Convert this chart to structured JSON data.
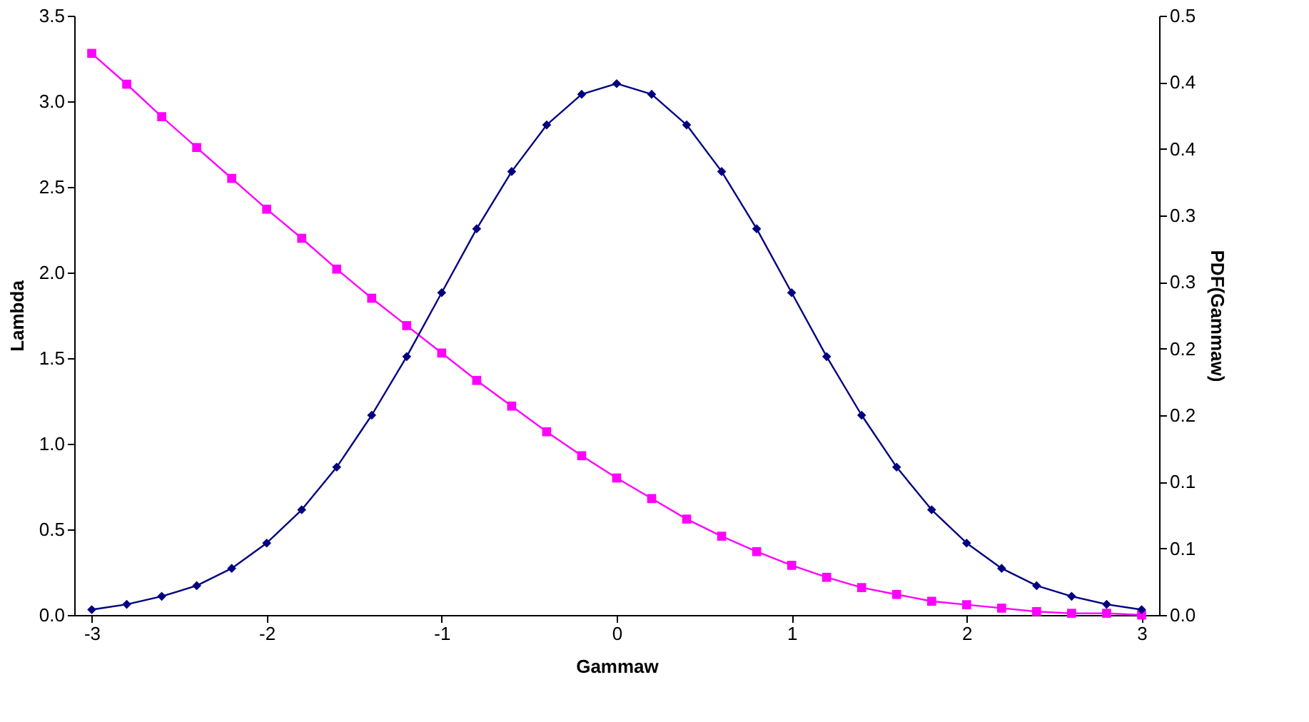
{
  "chart_data": {
    "type": "line",
    "xlabel": "Gammaw",
    "ylabel": "Lambda",
    "y2label": "PDF(Gammaw)",
    "x": [
      -3,
      -2.8,
      -2.6,
      -2.4,
      -2.2,
      -2,
      -1.8,
      -1.6,
      -1.4,
      -1.2,
      -1,
      -0.8,
      -0.6,
      -0.4,
      -0.2,
      0,
      0.2,
      0.4,
      0.6,
      0.8,
      1,
      1.2,
      1.4,
      1.6,
      1.8,
      2,
      2.2,
      2.4,
      2.6,
      2.8,
      3
    ],
    "series": [
      {
        "color": "#ff00ff",
        "marker": "square",
        "values": [
          3.28,
          3.1,
          2.91,
          2.73,
          2.55,
          2.37,
          2.2,
          2.02,
          1.85,
          1.69,
          1.53,
          1.37,
          1.22,
          1.07,
          0.93,
          0.8,
          0.68,
          0.56,
          0.46,
          0.37,
          0.29,
          0.22,
          0.16,
          0.12,
          0.08,
          0.06,
          0.04,
          0.02,
          0.01,
          0.01,
          0
        ]
      },
      {
        "color": "#000080",
        "marker": "diamond",
        "axis": "y2",
        "values": [
          0.004,
          0.008,
          0.014,
          0.022,
          0.035,
          0.054,
          0.079,
          0.111,
          0.15,
          0.194,
          0.242,
          0.29,
          0.333,
          0.368,
          0.391,
          0.399,
          0.391,
          0.368,
          0.333,
          0.29,
          0.242,
          0.194,
          0.15,
          0.111,
          0.079,
          0.054,
          0.035,
          0.022,
          0.014,
          0.008,
          0.004
        ]
      }
    ],
    "xlim": [
      -3.1,
      3.1
    ],
    "xticks": [
      -3,
      -2,
      -1,
      0,
      1,
      2,
      3
    ],
    "ylim": [
      0,
      3.5
    ],
    "yticks": [
      {
        "value": 0,
        "label": "0.0"
      },
      0.5,
      {
        "value": 1,
        "label": "1.0"
      },
      1.5,
      {
        "value": 2,
        "label": "2.0"
      },
      2.5,
      {
        "value": 3,
        "label": "3.0"
      },
      3.5
    ],
    "y2lim": [
      0,
      0.45
    ],
    "y2ticks": [
      {
        "value": 0,
        "label": "0.0"
      },
      {
        "value": 0.05,
        "label": "0.1"
      },
      {
        "value": 0.1,
        "label": "0.1"
      },
      {
        "value": 0.15,
        "label": "0.2"
      },
      {
        "value": 0.2,
        "label": "0.2"
      },
      {
        "value": 0.25,
        "label": "0.3"
      },
      {
        "value": 0.3,
        "label": "0.3"
      },
      {
        "value": 0.35,
        "label": "0.4"
      },
      {
        "value": 0.4,
        "label": "0.4"
      },
      {
        "value": 0.45,
        "label": "0.5"
      }
    ],
    "grid": false,
    "line_style": "solid"
  }
}
